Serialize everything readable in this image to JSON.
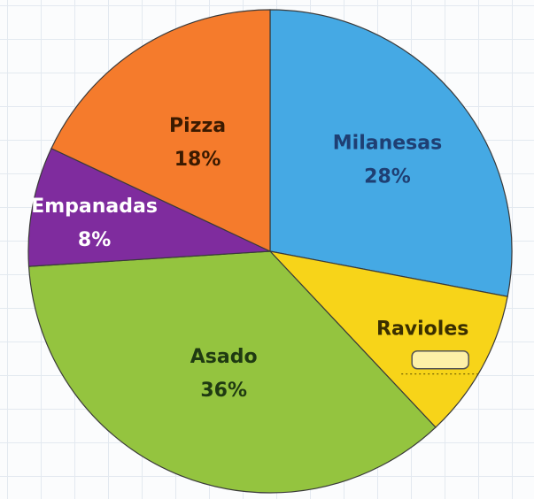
{
  "chart_data": {
    "type": "pie",
    "title": "",
    "start_angle_deg": 0,
    "direction": "clockwise",
    "slices": [
      {
        "key": "milanesas",
        "label": "Milanesas",
        "value": 28,
        "value_text": "28%",
        "color": "#45a9e4",
        "text_color": "#1f3f73"
      },
      {
        "key": "ravioles",
        "label": "Ravioles",
        "value": null,
        "value_text": "",
        "color": "#f7d419",
        "text_color": "#3a2f00"
      },
      {
        "key": "asado",
        "label": "Asado",
        "value": 36,
        "value_text": "36%",
        "color": "#94c43f",
        "text_color": "#1f3a12"
      },
      {
        "key": "empanadas",
        "label": "Empanadas",
        "value": 8,
        "value_text": "8%",
        "color": "#7f2c9e",
        "text_color": "#ffffff"
      },
      {
        "key": "pizza",
        "label": "Pizza",
        "value": 18,
        "value_text": "18%",
        "color": "#f57b2c",
        "text_color": "#3b1a00"
      }
    ],
    "blank_answer_box": {
      "slice": "ravioles",
      "fill": "#fdf0a8",
      "stroke": "#555555"
    }
  }
}
